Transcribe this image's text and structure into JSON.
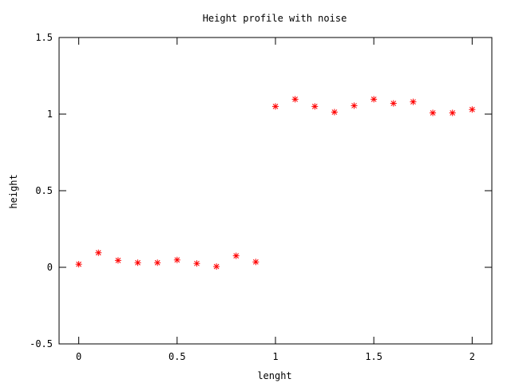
{
  "chart_data": {
    "type": "scatter",
    "title": "Height profile with noise",
    "xlabel": "lenght",
    "ylabel": "height",
    "xlim": [
      -0.1,
      2.1
    ],
    "ylim": [
      -0.5,
      1.5
    ],
    "x_ticks": [
      0,
      0.5,
      1,
      1.5,
      2
    ],
    "x_tick_labels": [
      "0",
      "0.5",
      "1",
      "1.5",
      "2"
    ],
    "y_ticks": [
      -0.5,
      0,
      0.5,
      1,
      1.5
    ],
    "y_tick_labels": [
      "-0.5",
      "0",
      "0.5",
      "1",
      "1.5"
    ],
    "marker": "asterisk",
    "marker_color": "#ff0000",
    "grid": false,
    "legend": "none",
    "series": [
      {
        "x": [
          0,
          0.1,
          0.2,
          0.3,
          0.4,
          0.5,
          0.6,
          0.7,
          0.8,
          0.9,
          1.0,
          1.1,
          1.2,
          1.3,
          1.4,
          1.5,
          1.6,
          1.7,
          1.8,
          1.9,
          2.0
        ],
        "y": [
          0.02,
          0.095,
          0.045,
          0.03,
          0.03,
          0.048,
          0.025,
          0.005,
          0.075,
          0.035,
          1.05,
          1.097,
          1.05,
          1.013,
          1.055,
          1.097,
          1.07,
          1.08,
          1.008,
          1.008,
          1.03
        ]
      }
    ]
  }
}
